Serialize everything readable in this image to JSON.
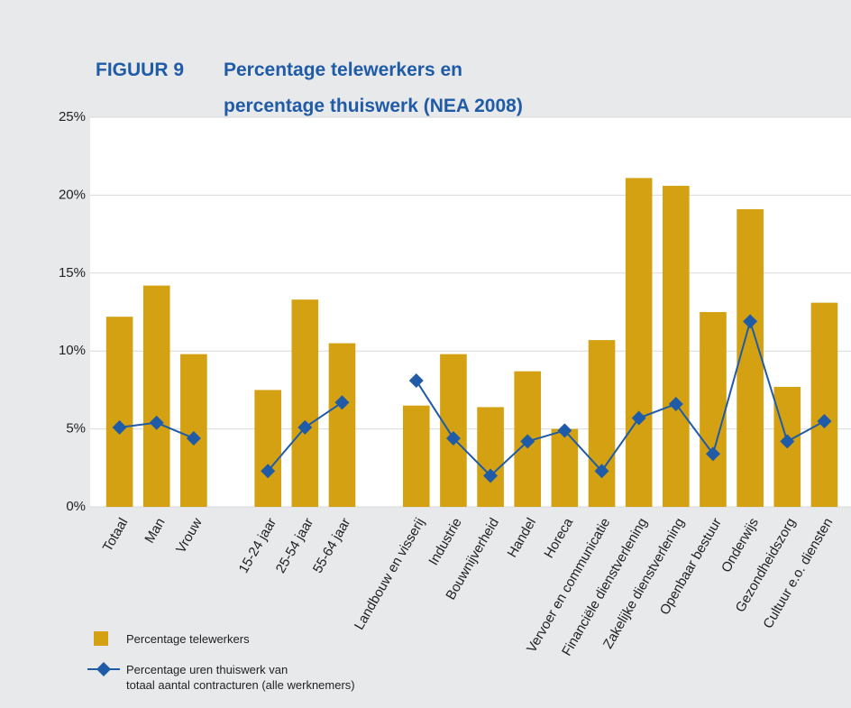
{
  "chart_data": {
    "type": "bar",
    "title_label": "FIGUUR 9",
    "title": "Percentage telewerkers en\npercentage thuiswerk (NEA 2008)",
    "categories": [
      "Totaal",
      "Man",
      "Vrouw",
      null,
      "15-24 jaar",
      "25-54 jaar",
      "55-64 jaar",
      null,
      "Landbouw en visserij",
      "Industrie",
      "Bouwnijverheid",
      "Handel",
      "Horeca",
      "Vervoer en communicatie",
      "Financiële dienstverlening",
      "Zakelijke dienstverlening",
      "Openbaar bestuur",
      "Onderwijs",
      "Gezondheidszorg",
      "Cultuur e.o. diensten"
    ],
    "series": [
      {
        "name": "Percentage telewerkers",
        "type": "bar",
        "color": "#d4a112",
        "values": [
          12.2,
          14.2,
          9.8,
          null,
          7.5,
          13.3,
          10.5,
          null,
          6.5,
          9.8,
          6.4,
          8.7,
          5.0,
          10.7,
          21.1,
          20.6,
          12.5,
          19.1,
          7.7,
          13.1
        ]
      },
      {
        "name": "Percentage uren thuiswerk van\ntotaal aantal contracturen (alle werknemers)",
        "type": "line",
        "color": "#1f5ba6",
        "values": [
          5.1,
          5.4,
          4.4,
          null,
          2.3,
          5.1,
          6.7,
          null,
          8.1,
          4.4,
          2.0,
          4.2,
          4.9,
          2.3,
          5.7,
          6.6,
          3.4,
          11.9,
          4.2,
          5.5
        ]
      }
    ],
    "ylim": [
      0,
      25
    ],
    "yticks": [
      {
        "value": 0,
        "label": "0%"
      },
      {
        "value": 5,
        "label": "5%"
      },
      {
        "value": 10,
        "label": "10%"
      },
      {
        "value": 15,
        "label": "15%"
      },
      {
        "value": 20,
        "label": "20%"
      },
      {
        "value": 25,
        "label": "25%"
      }
    ],
    "grid": true
  }
}
